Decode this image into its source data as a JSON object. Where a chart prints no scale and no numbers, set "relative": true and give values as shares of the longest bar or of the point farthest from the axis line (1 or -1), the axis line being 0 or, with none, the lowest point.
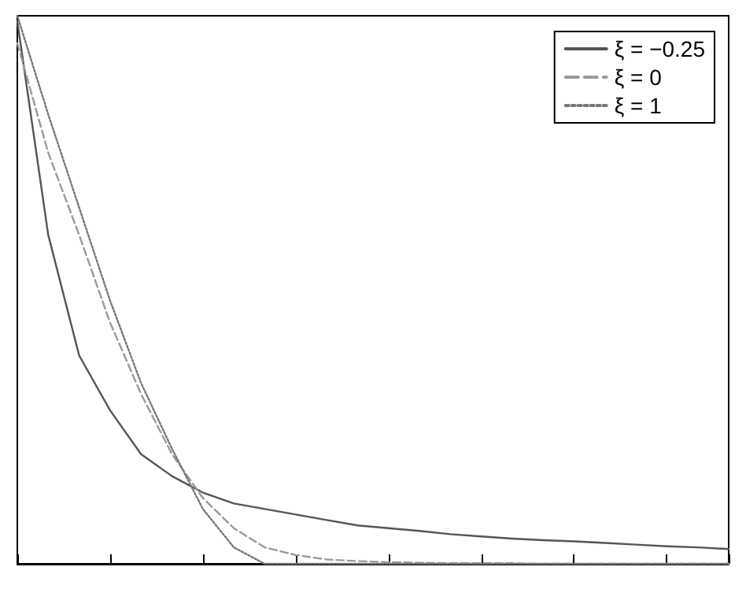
{
  "chart_data": {
    "type": "line",
    "relative": true,
    "grid": false,
    "legend": "top right",
    "marker": "none",
    "categories": [
      null,
      null,
      null,
      null,
      null,
      null,
      null,
      null,
      null,
      null,
      null,
      null,
      null,
      null,
      null,
      null,
      null,
      null,
      null,
      null,
      null,
      null,
      null,
      null
    ],
    "series": [
      {
        "name": "ξ = −0.25",
        "color": "#555555",
        "line_style": "solid",
        "values": [
          0.99,
          0.6,
          0.38,
          0.28,
          0.2,
          0.16,
          0.13,
          0.11,
          0.1,
          0.09,
          0.08,
          0.07,
          0.065,
          0.06,
          0.054,
          0.05,
          0.046,
          0.043,
          0.041,
          0.038,
          0.035,
          0.032,
          0.03,
          0.027
        ]
      },
      {
        "name": "ξ = 0",
        "color": "#9a9a9a",
        "line_style": "dashed",
        "values": [
          0.95,
          0.75,
          0.6,
          0.44,
          0.31,
          0.2,
          0.12,
          0.065,
          0.03,
          0.016,
          0.008,
          0.005,
          0.003,
          0.002,
          0.001,
          0.001,
          0.001,
          0,
          0,
          0,
          0,
          0,
          0,
          0
        ]
      },
      {
        "name": "ξ = 1",
        "color": "#777777",
        "line_style": "dotted",
        "values": [
          1,
          0.82,
          0.65,
          0.48,
          0.33,
          0.21,
          0.1,
          0.03,
          0,
          0,
          0,
          0,
          0,
          0,
          0,
          0,
          0,
          0,
          0,
          0,
          0,
          0,
          0,
          0
        ]
      }
    ]
  }
}
